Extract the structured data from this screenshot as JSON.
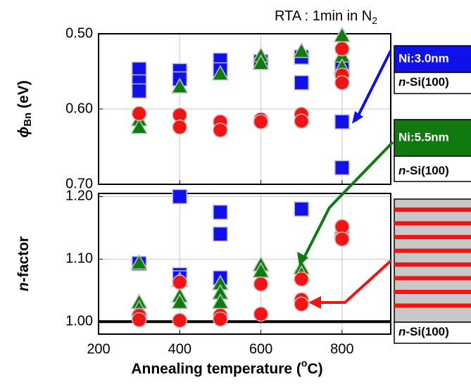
{
  "title": {
    "text": "RTA : 1min in N",
    "sub": "2"
  },
  "legend": [
    {
      "label": "Ni:3.0nm",
      "substrate": [
        "n",
        "-Si(100)"
      ],
      "color": "#1010e8"
    },
    {
      "label": "Ni:5.5nm",
      "substrate": [
        "n",
        "-Si(100)"
      ],
      "color": "#107a10"
    },
    {
      "substrate": [
        "n",
        "-Si(100)"
      ],
      "color": "#f01414"
    }
  ],
  "chart_data": [
    {
      "type": "scatter",
      "ylabel": {
        "symbol": "ϕ",
        "sub": "Bn",
        "unit": " (eV)"
      },
      "xlim": [
        200,
        920
      ],
      "xticks": [
        200,
        400,
        600,
        800
      ],
      "ylim": [
        0.7,
        0.5
      ],
      "yticks": [
        {
          "value": 0.5,
          "label": "0.50"
        },
        {
          "value": 0.6,
          "label": "0.60"
        },
        {
          "value": 0.7,
          "label": "0.70"
        }
      ],
      "grid": true,
      "series": [
        {
          "marker": "square",
          "color": "#1010e8",
          "x": [
            300,
            300,
            300,
            400,
            400,
            500,
            500,
            600,
            700,
            700,
            800,
            800,
            800
          ],
          "values": [
            0.547,
            0.564,
            0.576,
            0.549,
            0.56,
            0.535,
            0.548,
            0.537,
            0.531,
            0.565,
            0.546,
            0.617,
            0.678
          ]
        },
        {
          "marker": "triangle",
          "color": "#107a10",
          "x": [
            300,
            300,
            400,
            500,
            600,
            600,
            700,
            800,
            800,
            800
          ],
          "values": [
            0.615,
            0.625,
            0.571,
            0.554,
            0.53,
            0.54,
            0.524,
            0.503,
            0.53,
            0.545
          ]
        },
        {
          "marker": "circle",
          "color": "#f01414",
          "x": [
            300,
            400,
            400,
            500,
            500,
            600,
            600,
            700,
            700,
            800,
            800,
            800
          ],
          "values": [
            0.606,
            0.608,
            0.624,
            0.617,
            0.628,
            0.614,
            0.617,
            0.607,
            0.616,
            0.52,
            0.555,
            0.565
          ]
        }
      ]
    },
    {
      "type": "scatter",
      "ylabel": {
        "symbol": "n",
        "rest": "-factor"
      },
      "xlabel": {
        "text": "Annealing temperature (",
        "sup": "o",
        "end": "C)"
      },
      "xlim": [
        200,
        920
      ],
      "xticks": [
        200,
        400,
        600,
        800
      ],
      "ylim": [
        0.98,
        1.205
      ],
      "yticks": [
        {
          "value": 1.0,
          "label": "1.00"
        },
        {
          "value": 1.1,
          "label": "1.10"
        },
        {
          "value": 1.2,
          "label": "1.20"
        }
      ],
      "grid": true,
      "hline": 1.0,
      "series": [
        {
          "marker": "square",
          "color": "#1010e8",
          "x": [
            300,
            400,
            400,
            400,
            500,
            500,
            500,
            700
          ],
          "values": [
            1.093,
            1.2,
            1.075,
            1.07,
            1.175,
            1.14,
            1.07,
            1.18
          ]
        },
        {
          "marker": "triangle",
          "color": "#107a10",
          "x": [
            300,
            300,
            300,
            400,
            400,
            400,
            500,
            500,
            500,
            600,
            600,
            700,
            700,
            800,
            800
          ],
          "values": [
            1.093,
            1.03,
            1.02,
            1.065,
            1.04,
            1.03,
            1.06,
            1.045,
            1.03,
            1.09,
            1.08,
            1.085,
            1.075,
            1.15,
            1.145
          ]
        },
        {
          "marker": "circle",
          "color": "#f01414",
          "x": [
            300,
            300,
            400,
            400,
            500,
            500,
            600,
            600,
            700,
            700,
            700,
            800,
            800
          ],
          "values": [
            1.01,
            1.003,
            1.063,
            1.002,
            1.01,
            1.004,
            1.06,
            1.012,
            1.068,
            1.035,
            1.028,
            1.152,
            1.132
          ]
        }
      ]
    }
  ]
}
